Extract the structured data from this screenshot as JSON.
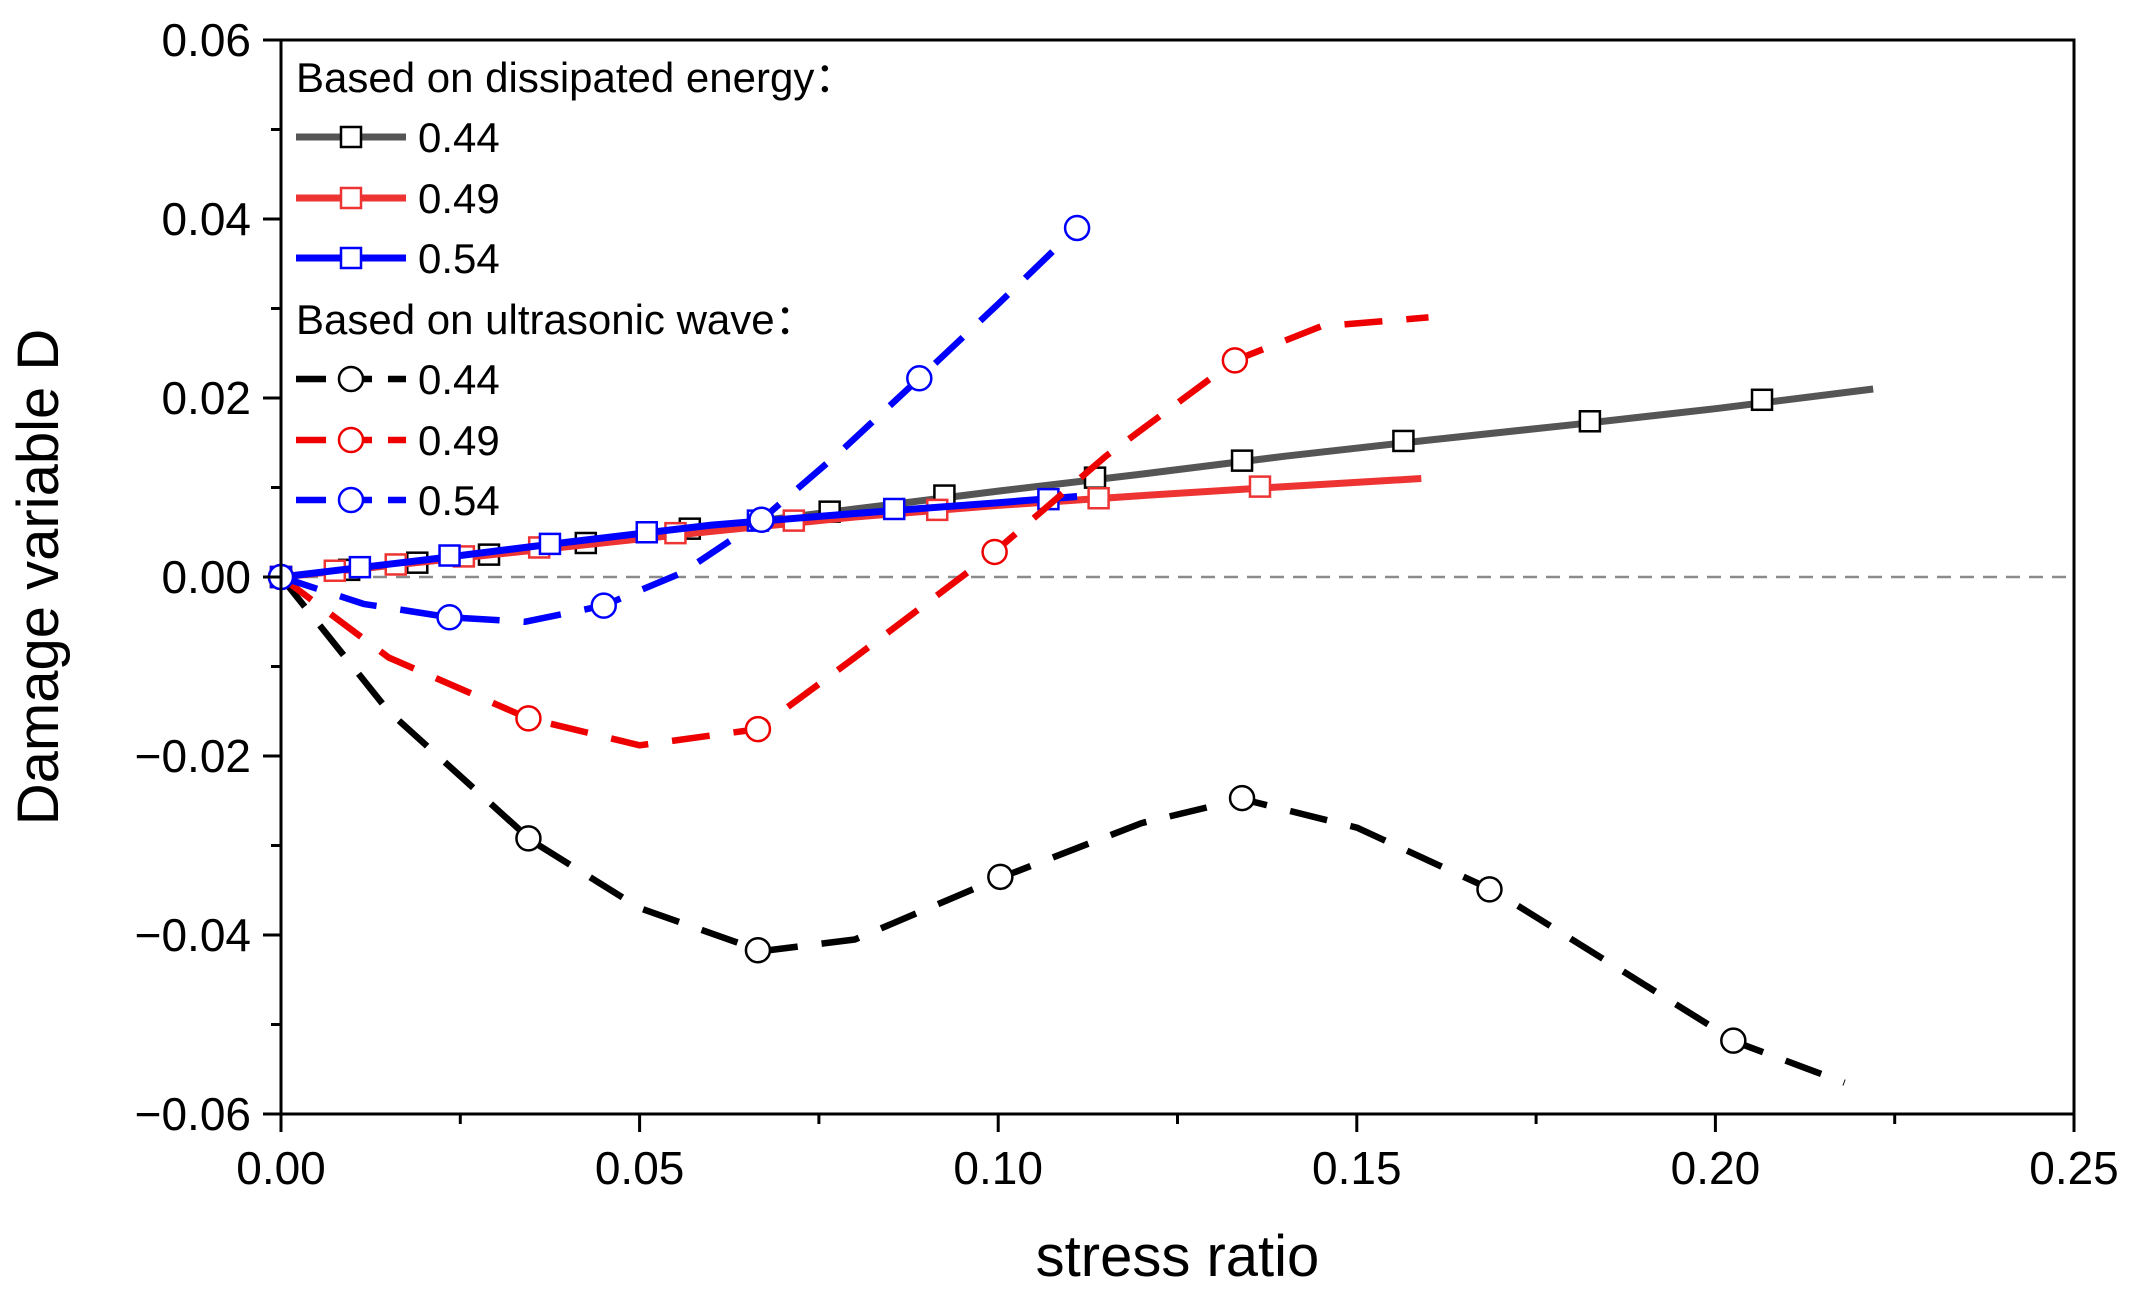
{
  "chart_data": {
    "type": "line",
    "xlabel": "stress ratio",
    "ylabel": "Damage variable D",
    "xlim": [
      0.0,
      0.25
    ],
    "ylim": [
      -0.06,
      0.06
    ],
    "x_ticks": [
      0.0,
      0.05,
      0.1,
      0.15,
      0.2,
      0.25
    ],
    "x_tick_labels": [
      "0.00",
      "0.05",
      "0.10",
      "0.15",
      "0.20",
      "0.25"
    ],
    "y_ticks": [
      -0.06,
      -0.04,
      -0.02,
      0.0,
      0.02,
      0.04,
      0.06
    ],
    "y_tick_labels": [
      "−0.06",
      "−0.04",
      "−0.02",
      "0.00",
      "0.02",
      "0.04",
      "0.06"
    ],
    "reference_line": {
      "y": 0.0,
      "style": "dashed",
      "color": "#8c8c8c"
    },
    "legend_position": "top-left",
    "legend": {
      "group1_heading": "Based on dissipated energy：",
      "group2_heading": "Based on ultrasonic wave："
    },
    "series": [
      {
        "name": "0.44",
        "group": "Based on dissipated energy",
        "color": "#555555",
        "style": "solid",
        "marker": "square",
        "line_x": [
          0.0,
          0.02,
          0.04,
          0.06,
          0.08,
          0.1,
          0.12,
          0.14,
          0.16,
          0.18,
          0.2,
          0.222
        ],
        "line_y": [
          0.0,
          0.0017,
          0.0036,
          0.0056,
          0.0076,
          0.0096,
          0.0115,
          0.0135,
          0.0153,
          0.017,
          0.0188,
          0.021
        ],
        "marker_x": [
          0.0,
          0.0095,
          0.019,
          0.029,
          0.0425,
          0.057,
          0.0765,
          0.0925,
          0.1135,
          0.134,
          0.1565,
          0.1825,
          0.2065
        ],
        "marker_y": [
          0.0,
          0.0008,
          0.0016,
          0.0025,
          0.0038,
          0.0054,
          0.0073,
          0.0091,
          0.0111,
          0.013,
          0.0152,
          0.0174,
          0.0198
        ]
      },
      {
        "name": "0.49",
        "group": "Based on dissipated energy",
        "color": "#ee3333",
        "style": "solid",
        "marker": "square",
        "line_x": [
          0.0,
          0.02,
          0.04,
          0.06,
          0.08,
          0.1,
          0.12,
          0.14,
          0.159
        ],
        "line_y": [
          0.0,
          0.0017,
          0.0034,
          0.0051,
          0.0067,
          0.008,
          0.0091,
          0.0101,
          0.011
        ],
        "marker_x": [
          0.0,
          0.0075,
          0.016,
          0.0255,
          0.036,
          0.055,
          0.0715,
          0.0915,
          0.114,
          0.1365
        ],
        "marker_y": [
          0.0,
          0.0007,
          0.0014,
          0.0023,
          0.0033,
          0.0049,
          0.0063,
          0.0075,
          0.0088,
          0.0101
        ]
      },
      {
        "name": "0.54",
        "group": "Based on dissipated energy",
        "color": "#0000ff",
        "style": "solid",
        "marker": "square",
        "line_x": [
          0.0,
          0.02,
          0.04,
          0.06,
          0.08,
          0.1,
          0.111
        ],
        "line_y": [
          0.0,
          0.0019,
          0.0039,
          0.0058,
          0.0071,
          0.0083,
          0.009
        ],
        "marker_x": [
          0.0,
          0.011,
          0.0235,
          0.0375,
          0.051,
          0.0665,
          0.0855,
          0.107
        ],
        "marker_y": [
          0.0,
          0.0011,
          0.0024,
          0.0037,
          0.005,
          0.0063,
          0.0076,
          0.0087
        ]
      },
      {
        "name": "0.44",
        "group": "Based on ultrasonic wave",
        "color": "#000000",
        "style": "dashed",
        "marker": "circle",
        "line_x": [
          0.0,
          0.015,
          0.035,
          0.05,
          0.067,
          0.08,
          0.1,
          0.12,
          0.134,
          0.15,
          0.169,
          0.19,
          0.203,
          0.218
        ],
        "line_y": [
          0.0,
          -0.015,
          -0.0295,
          -0.037,
          -0.0418,
          -0.0405,
          -0.0337,
          -0.0275,
          -0.0248,
          -0.028,
          -0.035,
          -0.0455,
          -0.052,
          -0.0565
        ],
        "marker_x": [
          0.0,
          0.0345,
          0.0665,
          0.1003,
          0.134,
          0.1685,
          0.2025
        ],
        "marker_y": [
          0.0,
          -0.0292,
          -0.0417,
          -0.0335,
          -0.0247,
          -0.0349,
          -0.0518
        ]
      },
      {
        "name": "0.49",
        "group": "Based on ultrasonic wave",
        "color": "#ee0000",
        "style": "dashed",
        "marker": "circle",
        "line_x": [
          0.0,
          0.015,
          0.0345,
          0.05,
          0.0665,
          0.08,
          0.0995,
          0.115,
          0.133,
          0.145,
          0.16
        ],
        "line_y": [
          0.0,
          -0.009,
          -0.0158,
          -0.0188,
          -0.017,
          -0.009,
          0.0028,
          0.0135,
          0.0242,
          0.028,
          0.029
        ],
        "marker_x": [
          0.0,
          0.0345,
          0.0665,
          0.0995,
          0.133
        ],
        "marker_y": [
          0.0,
          -0.0158,
          -0.017,
          0.0028,
          0.0242
        ]
      },
      {
        "name": "0.54",
        "group": "Based on ultrasonic wave",
        "color": "#0000ff",
        "style": "dashed",
        "marker": "circle",
        "line_x": [
          0.0,
          0.0115,
          0.0235,
          0.034,
          0.045,
          0.056,
          0.067,
          0.078,
          0.089,
          0.1,
          0.111
        ],
        "line_y": [
          0.0,
          -0.003,
          -0.0045,
          -0.005,
          -0.0032,
          0.0005,
          0.0064,
          0.014,
          0.0222,
          0.0305,
          0.039
        ],
        "marker_x": [
          0.0,
          0.0235,
          0.045,
          0.067,
          0.089,
          0.111
        ],
        "marker_y": [
          0.0,
          -0.0045,
          -0.0032,
          0.0064,
          0.0222,
          0.039
        ]
      }
    ]
  }
}
